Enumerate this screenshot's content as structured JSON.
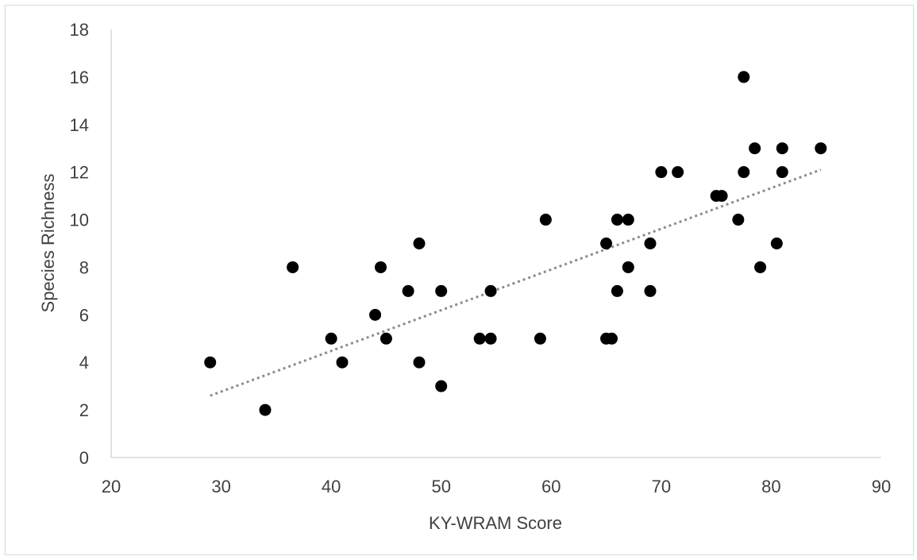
{
  "chart_data": {
    "type": "scatter",
    "title": "",
    "xlabel": "KY-WRAM Score",
    "ylabel": "Species Richness",
    "xlim": [
      20,
      90
    ],
    "ylim": [
      0,
      18
    ],
    "xticks": [
      20,
      30,
      40,
      50,
      60,
      70,
      80,
      90
    ],
    "yticks": [
      0,
      2,
      4,
      6,
      8,
      10,
      12,
      14,
      16,
      18
    ],
    "grid": false,
    "legend": "none",
    "colors": {
      "points": "#000000",
      "trendline": "#8c8c8c",
      "axis": "#d9d9d9",
      "text": "#404040"
    },
    "trendline": {
      "type": "linear",
      "style": "dotted",
      "x_start": 29,
      "y_start": 2.6,
      "x_end": 84.5,
      "y_end": 12.1
    },
    "series": [
      {
        "points": [
          [
            29,
            4
          ],
          [
            34,
            2
          ],
          [
            36.5,
            8
          ],
          [
            40,
            5
          ],
          [
            41,
            4
          ],
          [
            44,
            6
          ],
          [
            44.5,
            8
          ],
          [
            45,
            5
          ],
          [
            47,
            7
          ],
          [
            48,
            9
          ],
          [
            48,
            4
          ],
          [
            50,
            7
          ],
          [
            50,
            3
          ],
          [
            53.5,
            5
          ],
          [
            54.5,
            7
          ],
          [
            54.5,
            5
          ],
          [
            59,
            5
          ],
          [
            59.5,
            10
          ],
          [
            65,
            9
          ],
          [
            65,
            5
          ],
          [
            65.5,
            5
          ],
          [
            66,
            10
          ],
          [
            66,
            7
          ],
          [
            67,
            10
          ],
          [
            67,
            8
          ],
          [
            69,
            9
          ],
          [
            69,
            7
          ],
          [
            70,
            12
          ],
          [
            71.5,
            12
          ],
          [
            75,
            11
          ],
          [
            75.5,
            11
          ],
          [
            77,
            10
          ],
          [
            77.5,
            16
          ],
          [
            77.5,
            12
          ],
          [
            78.5,
            13
          ],
          [
            79,
            8
          ],
          [
            80.5,
            9
          ],
          [
            81,
            13
          ],
          [
            81,
            12
          ],
          [
            84.5,
            13
          ]
        ]
      }
    ]
  }
}
